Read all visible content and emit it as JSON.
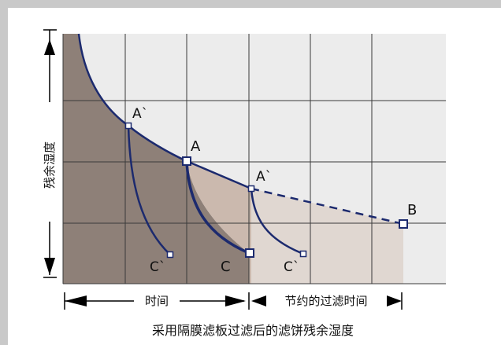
{
  "diagram": {
    "y_axis_label": "残余湿度",
    "x_time_label": "时间",
    "x_saved_label": "节约的过滤时间",
    "caption": "采用隔膜滤板过滤后的滤饼残余湿度",
    "points": {
      "a_prime_upper": "A`",
      "a": "A",
      "a_prime_lower": "A`",
      "b": "B",
      "c_prime_left": "C`",
      "c": "C",
      "c_prime_right": "C`"
    },
    "colors": {
      "region_dark": "#8e8078",
      "region_mid": "#cbb9ae",
      "region_light": "#e0d7d1",
      "panel": "#ececec",
      "curve": "#1c2a6e",
      "grid": "#3a3a3a"
    }
  }
}
